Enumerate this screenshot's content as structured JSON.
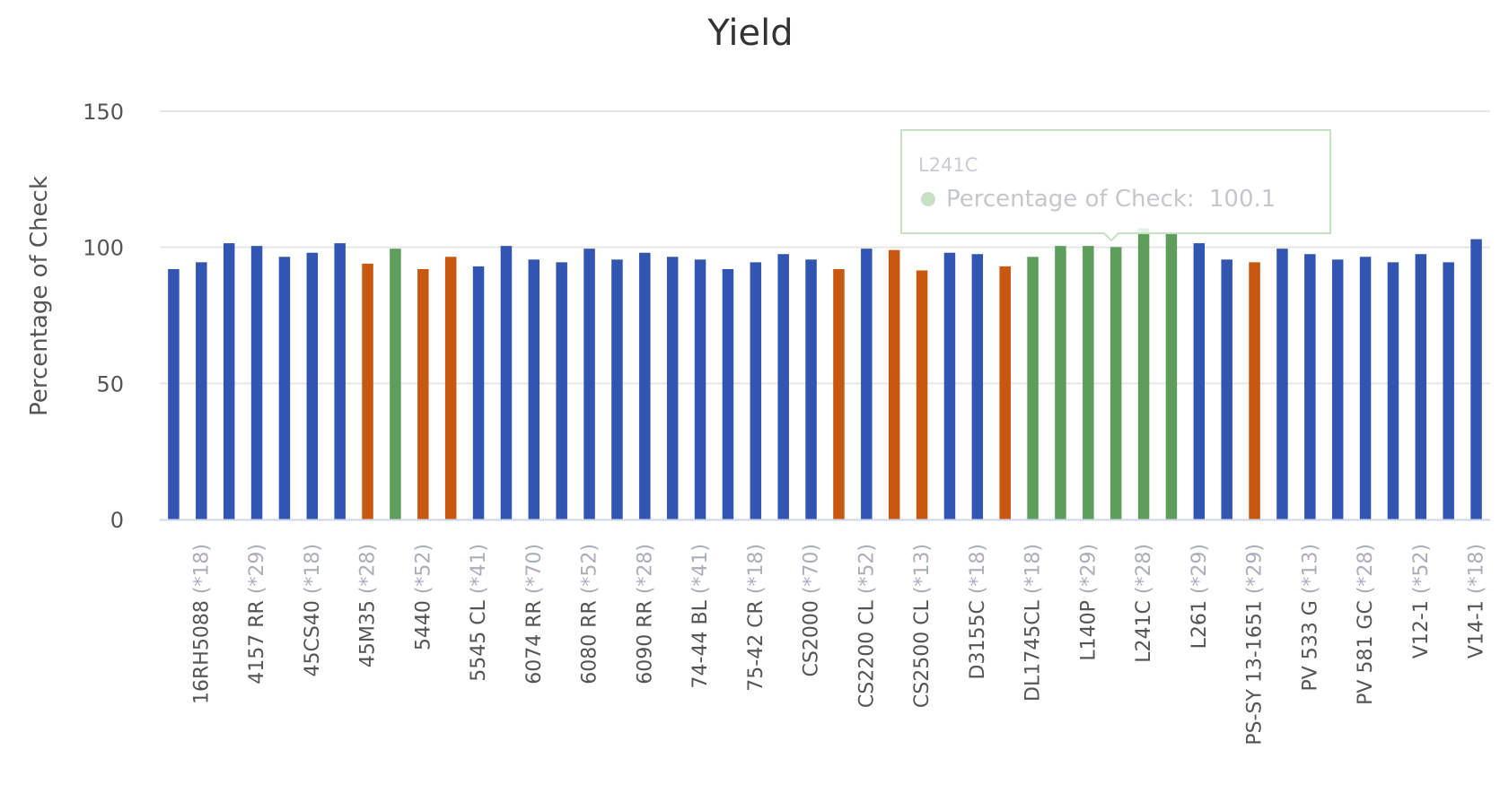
{
  "chart_data": {
    "type": "bar",
    "title": "Yield",
    "ylabel": "Percentage of Check",
    "xlabel": "",
    "ylim": [
      0,
      150
    ],
    "yticks": [
      "0",
      "50",
      "100",
      "150"
    ],
    "grid": true,
    "legend": "none",
    "colors": {
      "blue": "#3155b0",
      "orange": "#c85710",
      "green": "#5e9e5c"
    },
    "tooltip": {
      "category": "L241C",
      "label": "Percentage of Check:",
      "value": "100.1",
      "marker_color": "#c8e0c6"
    },
    "bars": [
      {
        "label": "",
        "value": 92,
        "color": "blue"
      },
      {
        "label": "16RH5088 (*18)",
        "value": 94.5,
        "color": "blue"
      },
      {
        "label": "",
        "value": 101.5,
        "color": "blue"
      },
      {
        "label": "4157 RR (*29)",
        "value": 100.5,
        "color": "blue"
      },
      {
        "label": "",
        "value": 96.5,
        "color": "blue"
      },
      {
        "label": "45CS40 (*18)",
        "value": 98,
        "color": "blue"
      },
      {
        "label": "",
        "value": 101.5,
        "color": "blue"
      },
      {
        "label": "45M35 (*28)",
        "value": 94,
        "color": "orange"
      },
      {
        "label": "",
        "value": 99.5,
        "color": "green"
      },
      {
        "label": "5440 (*52)",
        "value": 92,
        "color": "orange"
      },
      {
        "label": "",
        "value": 96.5,
        "color": "orange"
      },
      {
        "label": "5545 CL (*41)",
        "value": 93,
        "color": "blue"
      },
      {
        "label": "",
        "value": 100.5,
        "color": "blue"
      },
      {
        "label": "6074 RR (*70)",
        "value": 95.5,
        "color": "blue"
      },
      {
        "label": "",
        "value": 94.5,
        "color": "blue"
      },
      {
        "label": "6080 RR (*52)",
        "value": 99.5,
        "color": "blue"
      },
      {
        "label": "",
        "value": 95.5,
        "color": "blue"
      },
      {
        "label": "6090 RR (*28)",
        "value": 98,
        "color": "blue"
      },
      {
        "label": "",
        "value": 96.5,
        "color": "blue"
      },
      {
        "label": "74-44 BL (*41)",
        "value": 95.5,
        "color": "blue"
      },
      {
        "label": "",
        "value": 92,
        "color": "blue"
      },
      {
        "label": "75-42 CR (*18)",
        "value": 94.5,
        "color": "blue"
      },
      {
        "label": "",
        "value": 97.5,
        "color": "blue"
      },
      {
        "label": "CS2000 (*70)",
        "value": 95.5,
        "color": "blue"
      },
      {
        "label": "",
        "value": 92,
        "color": "orange"
      },
      {
        "label": "CS2200 CL (*52)",
        "value": 99.5,
        "color": "blue"
      },
      {
        "label": "",
        "value": 99,
        "color": "orange"
      },
      {
        "label": "CS2500 CL (*13)",
        "value": 91.5,
        "color": "orange"
      },
      {
        "label": "",
        "value": 98,
        "color": "blue"
      },
      {
        "label": "D3155C (*18)",
        "value": 97.5,
        "color": "blue"
      },
      {
        "label": "",
        "value": 93,
        "color": "orange"
      },
      {
        "label": "DL1745CL (*18)",
        "value": 96.5,
        "color": "green"
      },
      {
        "label": "",
        "value": 100.5,
        "color": "green"
      },
      {
        "label": "L140P (*29)",
        "value": 100.5,
        "color": "green"
      },
      {
        "label": "",
        "value": 100.1,
        "color": "green"
      },
      {
        "label": "L241C (*28)",
        "value": 107,
        "color": "green"
      },
      {
        "label": "",
        "value": 105,
        "color": "green"
      },
      {
        "label": "L261 (*29)",
        "value": 101.5,
        "color": "blue"
      },
      {
        "label": "",
        "value": 95.5,
        "color": "blue"
      },
      {
        "label": "PS-SY 13-1651 (*29)",
        "value": 94.5,
        "color": "orange"
      },
      {
        "label": "",
        "value": 99.5,
        "color": "blue"
      },
      {
        "label": "PV 533 G (*13)",
        "value": 97.5,
        "color": "blue"
      },
      {
        "label": "",
        "value": 95.5,
        "color": "blue"
      },
      {
        "label": "PV 581 GC (*28)",
        "value": 96.5,
        "color": "blue"
      },
      {
        "label": "",
        "value": 94.5,
        "color": "blue"
      },
      {
        "label": "V12-1 (*52)",
        "value": 97.5,
        "color": "blue"
      },
      {
        "label": "",
        "value": 94.5,
        "color": "blue"
      },
      {
        "label": "V14-1 (*18)",
        "value": 103,
        "color": "blue"
      }
    ]
  }
}
